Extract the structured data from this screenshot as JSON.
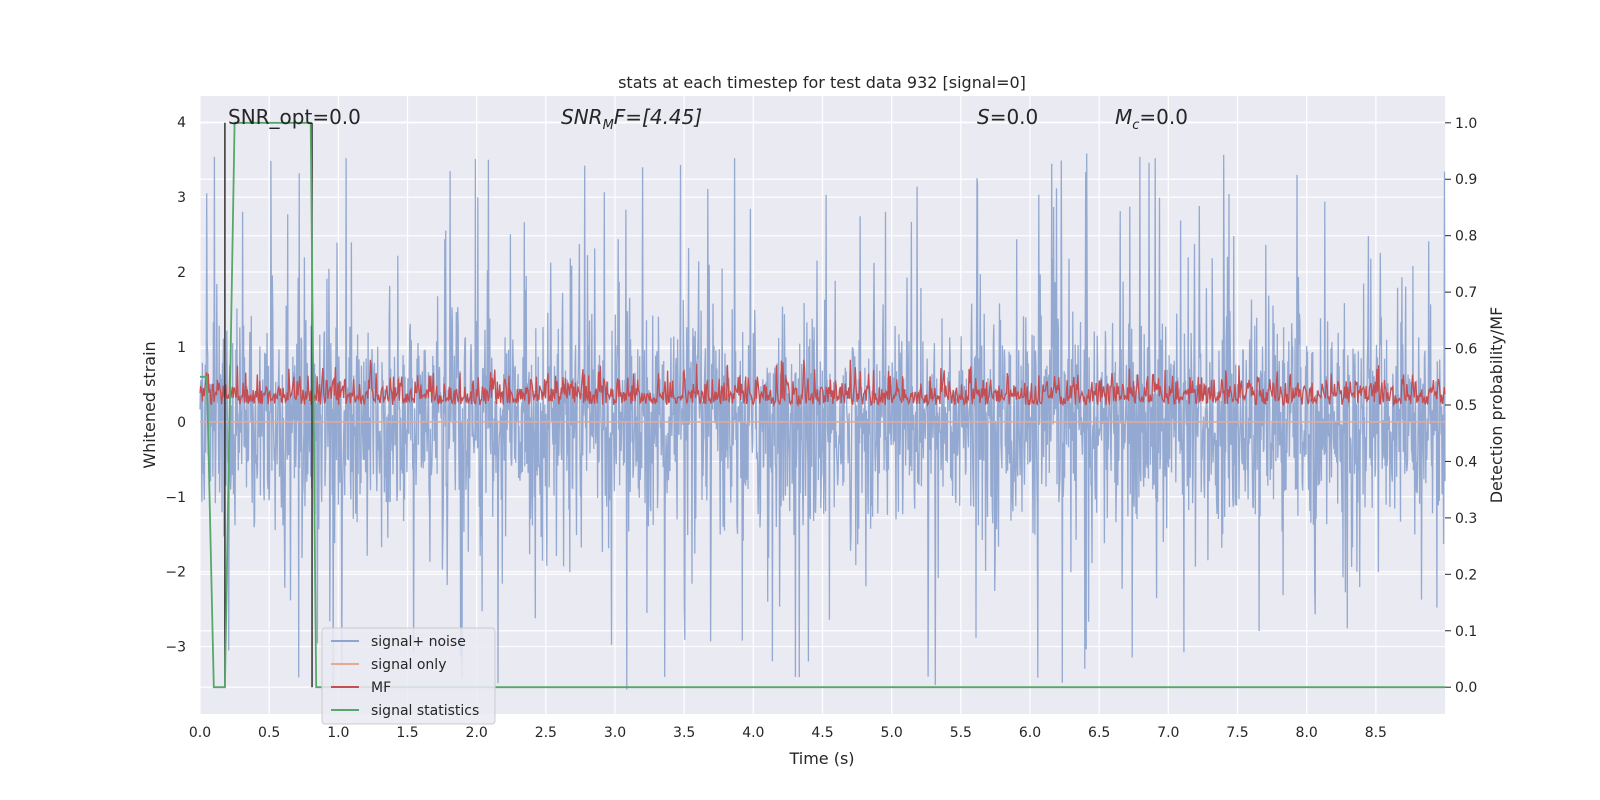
{
  "chart_data": {
    "type": "line",
    "title": "stats at each timestep for test data 932 [signal=0]",
    "xlabel": "Time (s)",
    "ylabel_left": "Whitened strain",
    "ylabel_right": "Detection probability/MF",
    "xlim": [
      0,
      9.0
    ],
    "ylim_left": [
      -3.9,
      4.35
    ],
    "ylim_right": [
      -0.0475,
      1.0475
    ],
    "x_ticks": [
      "0.0",
      "0.5",
      "1.0",
      "1.5",
      "2.0",
      "2.5",
      "3.0",
      "3.5",
      "4.0",
      "4.5",
      "5.0",
      "5.5",
      "6.0",
      "6.5",
      "7.0",
      "7.5",
      "8.0",
      "8.5"
    ],
    "y_ticks_left": [
      "−3",
      "−2",
      "−1",
      "0",
      "1",
      "2",
      "3",
      "4"
    ],
    "y_ticks_right": [
      "0.0",
      "0.1",
      "0.2",
      "0.3",
      "0.4",
      "0.5",
      "0.6",
      "0.7",
      "0.8",
      "0.9",
      "1.0"
    ],
    "grid": true,
    "legend_position": "lower-left",
    "annotations": {
      "snr_opt": "SNR_opt=0.0",
      "snr_mf_base": "SNR",
      "snr_mf_sub": "M",
      "snr_mf_rest": "F=[4.45]",
      "s_base": "S",
      "s_rest": "=0.0",
      "mc_base": "M",
      "mc_sub": "c",
      "mc_rest": "=0.0"
    },
    "series": [
      {
        "name": "signal+ noise",
        "color": "#8fa5cf",
        "amplitude_range": [
          -3.6,
          4.0
        ],
        "typical_range": [
          -1.8,
          1.8
        ]
      },
      {
        "name": "signal only",
        "color": "#e9a98f",
        "values": [
          0,
          0
        ]
      },
      {
        "name": "MF",
        "color": "#c44e52",
        "range_right_axis": [
          0.47,
          0.58
        ]
      },
      {
        "name": "signal statistics",
        "color": "#55a868",
        "x": [
          0.0,
          0.05,
          0.1,
          0.12,
          0.18,
          0.25,
          0.3,
          0.8,
          0.84,
          0.9,
          9.0
        ],
        "values": [
          0.55,
          0.55,
          0.0,
          0.0,
          0.0,
          1.0,
          1.0,
          1.0,
          0.0,
          0.0,
          0.0
        ]
      }
    ],
    "vlines": [
      {
        "x": 0.18,
        "color": "#333333"
      },
      {
        "x": 0.81,
        "color": "#333333"
      }
    ]
  }
}
